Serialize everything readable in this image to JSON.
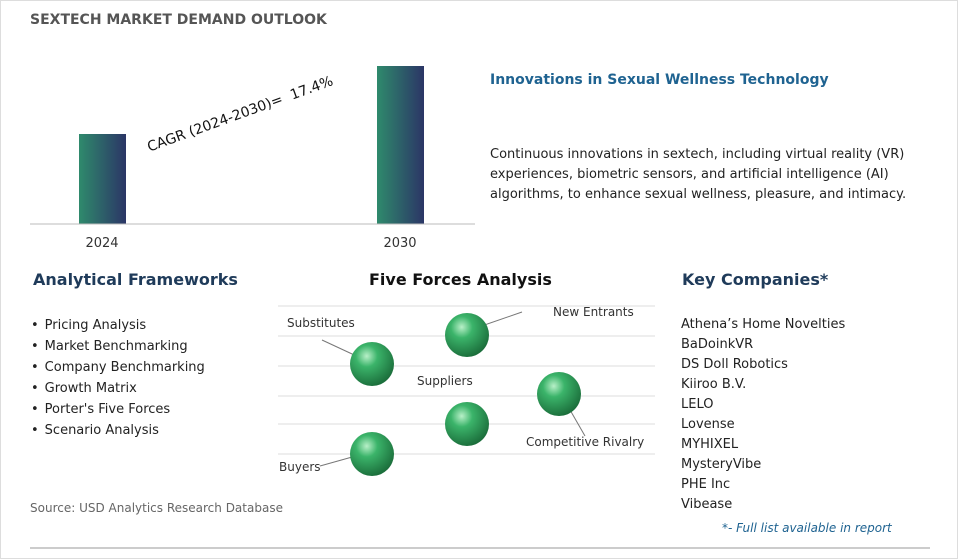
{
  "header": {
    "title": "SEXTECH MARKET DEMAND OUTLOOK"
  },
  "market_chart": {
    "years": [
      "2024",
      "2030"
    ],
    "cagr": "CAGR (2024-2030)=  17.4%"
  },
  "innovation": {
    "title": "Innovations in Sexual Wellness Technology",
    "text": "Continuous innovations in sextech, including virtual reality (VR) experiences, biometric sensors, and artificial intelligence (AI) algorithms, to enhance sexual wellness, pleasure, and intimacy."
  },
  "frameworks": {
    "title": "Analytical Frameworks",
    "items": [
      "Pricing Analysis",
      "Market Benchmarking",
      "Company Benchmarking",
      "Growth Matrix",
      "Porter's Five Forces",
      "Scenario Analysis"
    ]
  },
  "five_forces": {
    "title": "Five Forces Analysis",
    "forces": [
      "Substitutes",
      "New Entrants",
      "Suppliers",
      "Competitive Rivalry",
      "Buyers"
    ]
  },
  "companies": {
    "title": "Key Companies*",
    "items": [
      "Athena’s Home Novelties",
      "BaDoinkVR",
      "DS Doll Robotics",
      "Kiiroo B.V.",
      "LELO",
      "Lovense",
      "MYHIXEL",
      "MysteryVibe",
      "PHE Inc",
      "Vibease"
    ],
    "note": "*- Full list available in report"
  },
  "source": "Source: USD Analytics Research Database"
}
